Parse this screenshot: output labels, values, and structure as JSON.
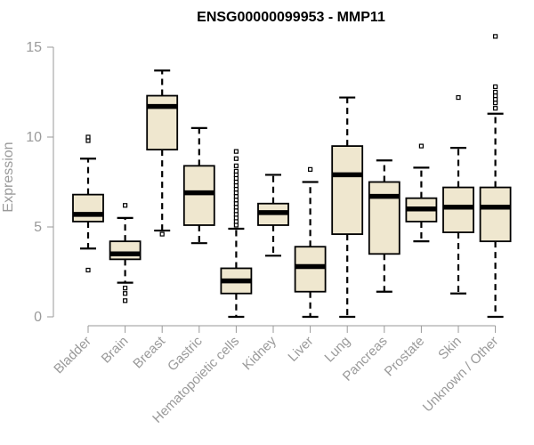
{
  "chart_data": {
    "type": "boxplot",
    "title": "ENSG00000099953 - MMP11",
    "xlabel": "",
    "ylabel": "Expression",
    "ylim": [
      0,
      15.5
    ],
    "yticks": [
      0,
      5,
      10,
      15
    ],
    "box_fill": "#efe7cf",
    "categories": [
      "Bladder",
      "Brain",
      "Breast",
      "Gastric",
      "Hematopoietic cells",
      "Kidney",
      "Liver",
      "Lung",
      "Pancreas",
      "Prostate",
      "Skin",
      "Unknown / Other"
    ],
    "boxes": [
      {
        "category": "Bladder",
        "whisker_low": 3.8,
        "q1": 5.3,
        "median": 5.7,
        "q3": 6.8,
        "whisker_high": 8.8,
        "outliers": [
          2.6,
          9.8,
          10.0
        ]
      },
      {
        "category": "Brain",
        "whisker_low": 1.9,
        "q1": 3.2,
        "median": 3.5,
        "q3": 4.2,
        "whisker_high": 5.5,
        "outliers": [
          6.2,
          1.6,
          1.3,
          0.9
        ]
      },
      {
        "category": "Breast",
        "whisker_low": 4.8,
        "q1": 9.3,
        "median": 11.7,
        "q3": 12.3,
        "whisker_high": 13.7,
        "outliers": [
          4.6
        ]
      },
      {
        "category": "Gastric",
        "whisker_low": 4.1,
        "q1": 5.1,
        "median": 6.9,
        "q3": 8.4,
        "whisker_high": 10.5,
        "outliers": []
      },
      {
        "category": "Hematopoietic cells",
        "whisker_low": 0.0,
        "q1": 1.3,
        "median": 2.0,
        "q3": 2.7,
        "whisker_high": 4.9,
        "outliers": [
          5.1,
          5.3,
          5.5,
          5.7,
          5.9,
          6.1,
          6.3,
          6.5,
          6.7,
          6.9,
          7.1,
          7.3,
          7.5,
          7.7,
          7.9,
          8.1,
          8.4,
          8.8,
          9.2
        ]
      },
      {
        "category": "Kidney",
        "whisker_low": 3.4,
        "q1": 5.1,
        "median": 5.8,
        "q3": 6.3,
        "whisker_high": 7.9,
        "outliers": []
      },
      {
        "category": "Liver",
        "whisker_low": 0.0,
        "q1": 1.4,
        "median": 2.8,
        "q3": 3.9,
        "whisker_high": 7.5,
        "outliers": [
          8.2
        ]
      },
      {
        "category": "Lung",
        "whisker_low": 0.0,
        "q1": 4.6,
        "median": 7.9,
        "q3": 9.5,
        "whisker_high": 12.2,
        "outliers": []
      },
      {
        "category": "Pancreas",
        "whisker_low": 1.4,
        "q1": 3.5,
        "median": 6.7,
        "q3": 7.5,
        "whisker_high": 8.7,
        "outliers": []
      },
      {
        "category": "Prostate",
        "whisker_low": 4.2,
        "q1": 5.3,
        "median": 6.0,
        "q3": 6.6,
        "whisker_high": 8.3,
        "outliers": [
          9.5
        ]
      },
      {
        "category": "Skin",
        "whisker_low": 1.3,
        "q1": 4.7,
        "median": 6.1,
        "q3": 7.2,
        "whisker_high": 9.4,
        "outliers": [
          12.2
        ]
      },
      {
        "category": "Unknown / Other",
        "whisker_low": 0.0,
        "q1": 4.2,
        "median": 6.1,
        "q3": 7.2,
        "whisker_high": 11.3,
        "outliers": [
          11.6,
          11.9,
          12.1,
          12.3,
          12.5,
          12.8,
          15.6
        ]
      }
    ]
  }
}
